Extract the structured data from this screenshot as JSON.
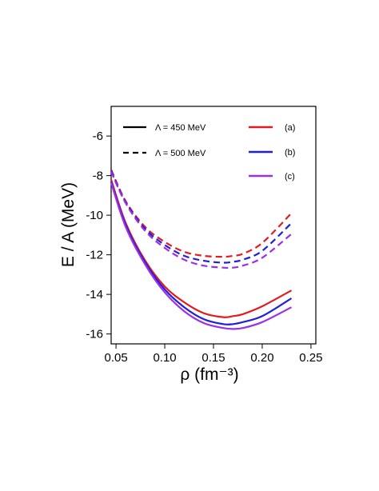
{
  "chart_data": {
    "type": "line",
    "xlabel": "ρ (fm⁻³)",
    "ylabel": "E / A  (MeV)",
    "xlim": [
      0.045,
      0.255
    ],
    "ylim": [
      -16.5,
      -4.5
    ],
    "xticks": [
      "0.05",
      "0.10",
      "0.15",
      "0.20",
      "0.25"
    ],
    "yticks": [
      "-6",
      "-8",
      "-10",
      "-12",
      "-14",
      "-16"
    ],
    "legend_styles": [
      {
        "label": "Λ = 450  MeV",
        "dash": "solid"
      },
      {
        "label": "Λ = 500  MeV",
        "dash": "dashed"
      }
    ],
    "legend_colors": [
      {
        "label": "(a)",
        "color": "#e41a1c"
      },
      {
        "label": "(b)",
        "color": "#1f1fe0"
      },
      {
        "label": "(c)",
        "color": "#9b30e8"
      }
    ],
    "x": [
      0.045,
      0.06,
      0.08,
      0.1,
      0.12,
      0.14,
      0.16,
      0.17,
      0.18,
      0.2,
      0.23
    ],
    "series": [
      {
        "name": "(a)",
        "group": "Λ = 450  MeV",
        "color": "#e41a1c",
        "dash": "solid",
        "values": [
          -8.2,
          -10.4,
          -12.3,
          -13.6,
          -14.4,
          -14.95,
          -15.15,
          -15.1,
          -15.0,
          -14.6,
          -13.8
        ]
      },
      {
        "name": "(b)",
        "group": "Λ = 450  MeV",
        "color": "#1f1fe0",
        "dash": "solid",
        "values": [
          -8.3,
          -10.5,
          -12.4,
          -13.75,
          -14.65,
          -15.25,
          -15.5,
          -15.5,
          -15.4,
          -15.1,
          -14.2
        ]
      },
      {
        "name": "(c)",
        "group": "Λ = 450  MeV",
        "color": "#9b30e8",
        "dash": "solid",
        "values": [
          -8.35,
          -10.6,
          -12.5,
          -13.9,
          -14.85,
          -15.45,
          -15.7,
          -15.75,
          -15.7,
          -15.4,
          -14.65
        ]
      },
      {
        "name": "(a)",
        "group": "Λ = 500  MeV",
        "color": "#e41a1c",
        "dash": "dashed",
        "values": [
          -7.7,
          -9.3,
          -10.6,
          -11.35,
          -11.85,
          -12.05,
          -12.1,
          -12.05,
          -11.95,
          -11.4,
          -9.9
        ]
      },
      {
        "name": "(b)",
        "group": "Λ = 500  MeV",
        "color": "#1f1fe0",
        "dash": "dashed",
        "values": [
          -7.75,
          -9.35,
          -10.7,
          -11.5,
          -12.05,
          -12.3,
          -12.4,
          -12.35,
          -12.25,
          -11.8,
          -10.4
        ]
      },
      {
        "name": "(c)",
        "group": "Λ = 500  MeV",
        "color": "#9b30e8",
        "dash": "dashed",
        "values": [
          -7.8,
          -9.4,
          -10.8,
          -11.65,
          -12.25,
          -12.55,
          -12.65,
          -12.65,
          -12.55,
          -12.15,
          -10.95
        ]
      }
    ],
    "grid": false,
    "legend_position": "top"
  }
}
